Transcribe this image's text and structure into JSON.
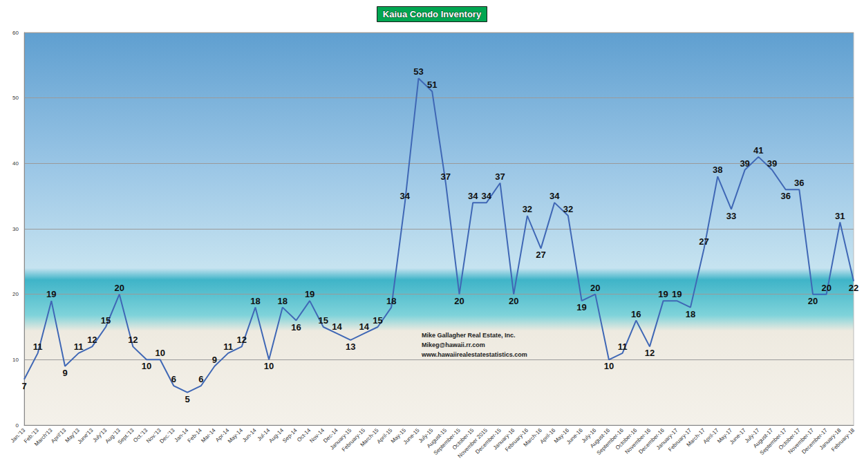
{
  "chart_data": {
    "type": "line",
    "title": "Kaiua Condo Inventory",
    "categories": [
      "Jan.'13",
      "Feb.'13",
      "March'13",
      "April'13",
      "May'13",
      "June'13",
      "July'13",
      "Aug.'13",
      "Sept.'13",
      "Oct.'13",
      "Nov.'13",
      "Dec.'13",
      "Jan-14",
      "Feb-14",
      "Mar-14",
      "Apr-14",
      "May-14",
      "Jun-14",
      "Jul-14",
      "Aug-14",
      "Sep-14",
      "Oct-14",
      "Nov-14",
      "Dec-14",
      "January-15",
      "February-15",
      "March-15",
      "April-15",
      "May-15",
      "June-15",
      "July-15",
      "August-15",
      "September-15",
      "October-15",
      "November 2015",
      "December-15",
      "January-16",
      "February-16",
      "March-16",
      "April-16",
      "May-16",
      "June-16",
      "July-16",
      "August-16",
      "September-16",
      "October-16",
      "November-16",
      "December-16",
      "January-17",
      "February-17",
      "March-17",
      "April-17",
      "May-17",
      "June-17",
      "July-17",
      "August-17",
      "September-17",
      "October-17",
      "November-17",
      "December-17",
      "January-18",
      "February-18"
    ],
    "values": [
      7,
      11,
      19,
      9,
      11,
      12,
      15,
      20,
      12,
      10,
      10,
      6,
      5,
      6,
      9,
      11,
      12,
      18,
      10,
      18,
      16,
      19,
      15,
      14,
      13,
      14,
      15,
      18,
      34,
      53,
      51,
      37,
      20,
      34,
      34,
      37,
      20,
      32,
      27,
      34,
      32,
      19,
      20,
      10,
      11,
      16,
      12,
      19,
      19,
      18,
      27,
      38,
      33,
      39,
      41,
      39,
      36,
      36,
      20,
      20,
      31,
      22
    ],
    "color": "#3f67b5",
    "ylim": [
      0,
      60
    ],
    "yticks": [
      0,
      10,
      20,
      30,
      40,
      50,
      60
    ],
    "grid": true,
    "data_labels": true,
    "annotations": [
      "Mike Gallagher Real Estate, Inc.",
      "Mikeg@hawaii.rr.com",
      "www.hawaiirealestatestatistics.com"
    ]
  }
}
